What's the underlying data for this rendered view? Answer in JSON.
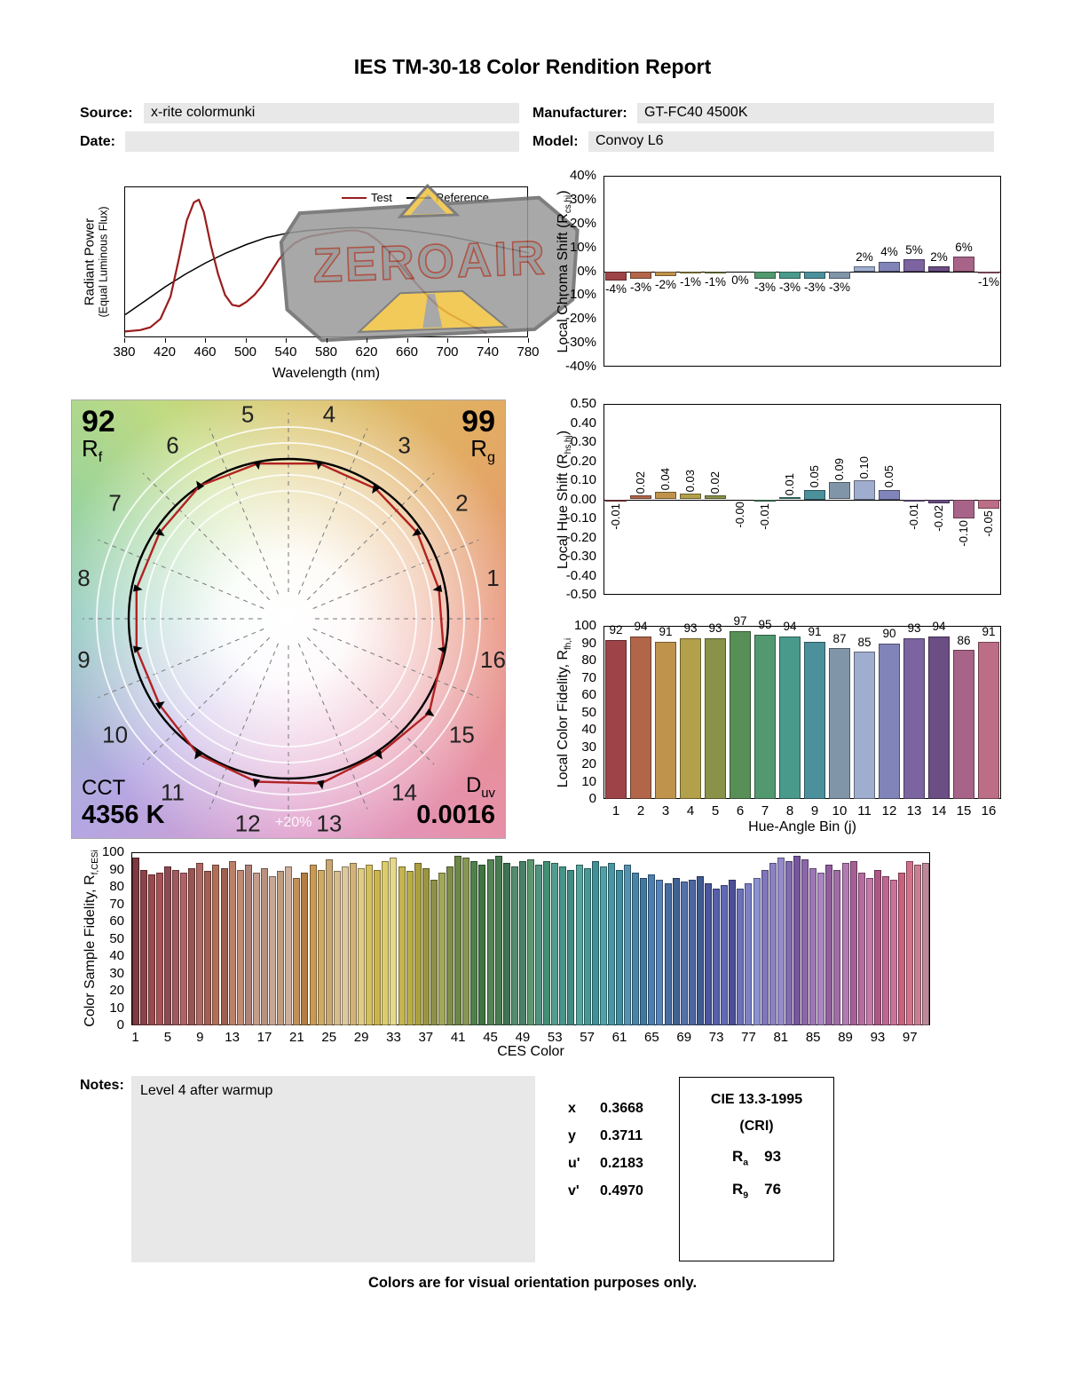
{
  "title": "IES TM-30-18 Color Rendition Report",
  "header": {
    "source_label": "Source:",
    "source_value": "x-rite colormunki",
    "manufacturer_label": "Manufacturer:",
    "manufacturer_value": "GT-FC40 4500K",
    "date_label": "Date:",
    "date_value": "",
    "model_label": "Model:",
    "model_value": "Convoy L6"
  },
  "watermark": {
    "text": "ZEROAIR"
  },
  "spectral": {
    "ylabel_line1": "Radiant Power",
    "ylabel_line2": "(Equal Luminous Flux)",
    "xlabel": "Wavelength (nm)",
    "legend_test": "Test",
    "legend_reference": "Reference"
  },
  "cvg": {
    "rf_value": "92",
    "rf_base": "R",
    "rf_sub": "f",
    "rg_value": "99",
    "rg_base": "R",
    "rg_sub": "g",
    "cct_label": "CCT",
    "cct_value": "4356 K",
    "duv_base": "D",
    "duv_sub": "uv",
    "duv_value": "0.0016",
    "ring_label": "+20%"
  },
  "ylabels": {
    "cs": {
      "pre": "Local Chroma Shift (R",
      "sub": "cs,hj",
      "post": ")"
    },
    "hs": {
      "pre": "Local Hue Shift (R",
      "sub": "hs,hj",
      "post": ")"
    },
    "lf": {
      "pre": "Local Color Fidelity, R",
      "sub": "fh,i",
      "post": ""
    },
    "ces": {
      "pre": "Color Sample Fidelity, R",
      "sub": "f,CESi",
      "post": ""
    }
  },
  "xlabels": {
    "lf": "Hue-Angle Bin (j)",
    "ces": "CES Color"
  },
  "hue_bin_colors": [
    "#9E4347",
    "#B26649",
    "#C0934C",
    "#B3A04A",
    "#8A9149",
    "#588F57",
    "#52996F",
    "#4A9A8C",
    "#4C909C",
    "#8195A8",
    "#9FADCE",
    "#8184B8",
    "#7C64A0",
    "#6B4E84",
    "#A86488",
    "#BC6E86"
  ],
  "chart_data": [
    {
      "id": "spd",
      "type": "line",
      "xlabel": "Wavelength (nm)",
      "ylabel": "Radiant Power (Equal Luminous Flux)",
      "xlim": [
        380,
        780
      ],
      "x_ticks": [
        380,
        420,
        460,
        500,
        540,
        580,
        620,
        660,
        700,
        740,
        780
      ],
      "series": [
        {
          "name": "Test",
          "color": "#9B1C1C",
          "points": [
            [
              380,
              0.01
            ],
            [
              395,
              0.02
            ],
            [
              405,
              0.04
            ],
            [
              415,
              0.1
            ],
            [
              425,
              0.26
            ],
            [
              433,
              0.52
            ],
            [
              441,
              0.8
            ],
            [
              448,
              0.93
            ],
            [
              453,
              0.95
            ],
            [
              458,
              0.86
            ],
            [
              465,
              0.62
            ],
            [
              472,
              0.42
            ],
            [
              479,
              0.27
            ],
            [
              486,
              0.2
            ],
            [
              493,
              0.19
            ],
            [
              500,
              0.22
            ],
            [
              508,
              0.27
            ],
            [
              516,
              0.34
            ],
            [
              524,
              0.43
            ],
            [
              532,
              0.52
            ],
            [
              540,
              0.59
            ],
            [
              548,
              0.64
            ],
            [
              556,
              0.67
            ],
            [
              564,
              0.69
            ],
            [
              572,
              0.7
            ],
            [
              580,
              0.71
            ],
            [
              590,
              0.72
            ],
            [
              600,
              0.73
            ],
            [
              610,
              0.73
            ],
            [
              620,
              0.71
            ],
            [
              630,
              0.66
            ],
            [
              640,
              0.59
            ],
            [
              650,
              0.51
            ],
            [
              660,
              0.42
            ],
            [
              670,
              0.34
            ],
            [
              680,
              0.26
            ],
            [
              690,
              0.19
            ],
            [
              700,
              0.14
            ],
            [
              710,
              0.1
            ],
            [
              718,
              0.07
            ],
            [
              726,
              0.04
            ],
            [
              733,
              0.02
            ],
            [
              738,
              0.0
            ]
          ]
        },
        {
          "name": "Reference",
          "color": "#000000",
          "points": [
            [
              380,
              0.13
            ],
            [
              400,
              0.23
            ],
            [
              420,
              0.33
            ],
            [
              440,
              0.42
            ],
            [
              460,
              0.5
            ],
            [
              480,
              0.57
            ],
            [
              500,
              0.63
            ],
            [
              520,
              0.68
            ],
            [
              540,
              0.71
            ],
            [
              560,
              0.73
            ],
            [
              580,
              0.74
            ],
            [
              600,
              0.75
            ],
            [
              620,
              0.75
            ],
            [
              640,
              0.74
            ],
            [
              660,
              0.73
            ],
            [
              680,
              0.71
            ],
            [
              700,
              0.69
            ],
            [
              720,
              0.66
            ],
            [
              740,
              0.63
            ],
            [
              760,
              0.6
            ],
            [
              780,
              0.57
            ]
          ]
        }
      ]
    },
    {
      "id": "local_chroma_shift",
      "type": "bar",
      "ylabel": "Local Chroma Shift (Rcs,hj)",
      "ylim": [
        -40,
        40
      ],
      "ytick_step": 10,
      "categories": [
        1,
        2,
        3,
        4,
        5,
        6,
        7,
        8,
        9,
        10,
        11,
        12,
        13,
        14,
        15,
        16
      ],
      "values": [
        -4,
        -3,
        -2,
        -1,
        -1,
        0,
        -3,
        -3,
        -3,
        -3,
        2,
        4,
        5,
        2,
        6,
        -1
      ],
      "labels": [
        "-4%",
        "-3%",
        "-2%",
        "-1%",
        "-1%",
        "0%",
        "-3%",
        "-3%",
        "-3%",
        "-3%",
        "2%",
        "4%",
        "5%",
        "2%",
        "6%",
        "-1%"
      ]
    },
    {
      "id": "local_hue_shift",
      "type": "bar",
      "ylabel": "Local Hue Shift (Rhs,hj)",
      "ylim": [
        -0.5,
        0.5
      ],
      "ytick_step": 0.1,
      "categories": [
        1,
        2,
        3,
        4,
        5,
        6,
        7,
        8,
        9,
        10,
        11,
        12,
        13,
        14,
        15,
        16
      ],
      "values": [
        -0.01,
        0.02,
        0.04,
        0.03,
        0.02,
        0,
        -0.01,
        0.01,
        0.05,
        0.09,
        0.1,
        0.05,
        -0.01,
        -0.02,
        -0.1,
        -0.05
      ],
      "labels": [
        "-0.01",
        "0.02",
        "0.04",
        "0.03",
        "0.02",
        "-0.00",
        "-0.01",
        "0.01",
        "0.05",
        "0.09",
        "0.10",
        "0.05",
        "-0.01",
        "-0.02",
        "-0.10",
        "-0.05"
      ]
    },
    {
      "id": "local_color_fidelity",
      "type": "bar",
      "ylabel": "Local Color Fidelity, Rfh,i",
      "xlabel": "Hue-Angle Bin (j)",
      "ylim": [
        0,
        100
      ],
      "ytick_step": 10,
      "categories": [
        1,
        2,
        3,
        4,
        5,
        6,
        7,
        8,
        9,
        10,
        11,
        12,
        13,
        14,
        15,
        16
      ],
      "values": [
        92,
        94,
        91,
        93,
        93,
        97,
        95,
        94,
        91,
        87,
        85,
        90,
        93,
        94,
        86,
        91
      ]
    },
    {
      "id": "ces_fidelity",
      "type": "bar",
      "ylabel": "Color Sample Fidelity, Rf,CESi",
      "xlabel": "CES Color",
      "ylim": [
        0,
        100
      ],
      "ytick_step": 10,
      "x_ticks": [
        1,
        5,
        9,
        13,
        17,
        21,
        25,
        29,
        33,
        37,
        41,
        45,
        49,
        53,
        57,
        61,
        65,
        69,
        73,
        77,
        81,
        85,
        89,
        93,
        97
      ],
      "values": [
        97,
        90,
        87,
        88,
        92,
        90,
        88,
        91,
        94,
        89,
        93,
        91,
        95,
        90,
        93,
        88,
        91,
        86,
        89,
        92,
        85,
        88,
        93,
        90,
        96,
        89,
        92,
        94,
        91,
        93,
        90,
        95,
        97,
        92,
        89,
        94,
        91,
        84,
        88,
        92,
        98,
        97,
        95,
        93,
        96,
        98,
        94,
        92,
        95,
        96,
        93,
        95,
        94,
        92,
        90,
        93,
        91,
        95,
        92,
        94,
        90,
        93,
        88,
        85,
        87,
        84,
        82,
        85,
        83,
        84,
        86,
        82,
        79,
        81,
        84,
        79,
        82,
        85,
        90,
        94,
        97,
        95,
        98,
        96,
        91,
        88,
        93,
        90,
        94,
        95,
        88,
        85,
        90,
        86,
        84,
        88,
        95,
        93,
        94
      ],
      "colors": [
        "#7E3A40",
        "#8C4247",
        "#9A4A4C",
        "#A65254",
        "#8E4A52",
        "#A05A5E",
        "#B06266",
        "#9C5450",
        "#AE6A62",
        "#A45E54",
        "#B07058",
        "#A06050",
        "#BC8068",
        "#C08A74",
        "#AE8278",
        "#C49C8C",
        "#B8927E",
        "#C8A694",
        "#BE9C7E",
        "#CCAE9A",
        "#C09058",
        "#B47E40",
        "#C89A52",
        "#D0AA62",
        "#C8A874",
        "#D6BC8E",
        "#DEC8A0",
        "#D2B276",
        "#E0CC82",
        "#D6C05E",
        "#CCB44A",
        "#DCCC6C",
        "#E6D88C",
        "#C4B452",
        "#B8AC46",
        "#ACA03E",
        "#9A9640",
        "#8E9048",
        "#A2A858",
        "#7E8E4A",
        "#6E8646",
        "#889656",
        "#50804A",
        "#407440",
        "#548456",
        "#487C50",
        "#3E7452",
        "#548C6E",
        "#488266",
        "#5C986E",
        "#50927E",
        "#409076",
        "#549C8E",
        "#489488",
        "#408C82",
        "#54A69E",
        "#489896",
        "#409098",
        "#50A2A8",
        "#4896A4",
        "#408CA0",
        "#5492B0",
        "#4884A8",
        "#4078A2",
        "#4C7EB2",
        "#5684BA",
        "#486C9E",
        "#406292",
        "#5472AA",
        "#4C66A2",
        "#405A92",
        "#4A569E",
        "#565FAA",
        "#6169B6",
        "#4C5096",
        "#6C71BA",
        "#7C81C6",
        "#8C91D2",
        "#8176BA",
        "#8C81C2",
        "#968ACA",
        "#816CB2",
        "#76569E",
        "#8C66AA",
        "#9E76B6",
        "#AA86C2",
        "#915E9E",
        "#A26CA6",
        "#B27AB2",
        "#A66096",
        "#B66C9E",
        "#C27AAA",
        "#AE5686",
        "#BE6692",
        "#CA729A",
        "#C6627E",
        "#D2728A",
        "#CA7E92",
        "#BE8898"
      ]
    },
    {
      "id": "color_vector_graphic",
      "type": "polar",
      "rf": 92,
      "rg": 99,
      "cct": "4356 K",
      "duv": 0.0016,
      "bins": [
        1,
        2,
        3,
        4,
        5,
        6,
        7,
        8,
        9,
        10,
        11,
        12,
        13,
        14,
        15,
        16
      ],
      "chroma_shift_pct": [
        -4,
        -3,
        -2,
        -1,
        -1,
        0,
        -3,
        -3,
        -3,
        -3,
        2,
        4,
        5,
        2,
        6,
        -1
      ]
    }
  ],
  "notes": {
    "label": "Notes:",
    "text": "Level 4 after warmup"
  },
  "chromaticity": {
    "rows": [
      {
        "label": "x",
        "value": "0.3668"
      },
      {
        "label": "y",
        "value": "0.3711"
      },
      {
        "label": "u'",
        "value": "0.2183"
      },
      {
        "label": "v'",
        "value": "0.4970"
      }
    ]
  },
  "cie": {
    "title": "CIE 13.3-1995",
    "subtitle": "(CRI)",
    "ra_base": "R",
    "ra_sub": "a",
    "ra_value": "93",
    "r9_base": "R",
    "r9_sub": "9",
    "r9_value": "76"
  },
  "footer": "Colors are for visual orientation purposes only."
}
